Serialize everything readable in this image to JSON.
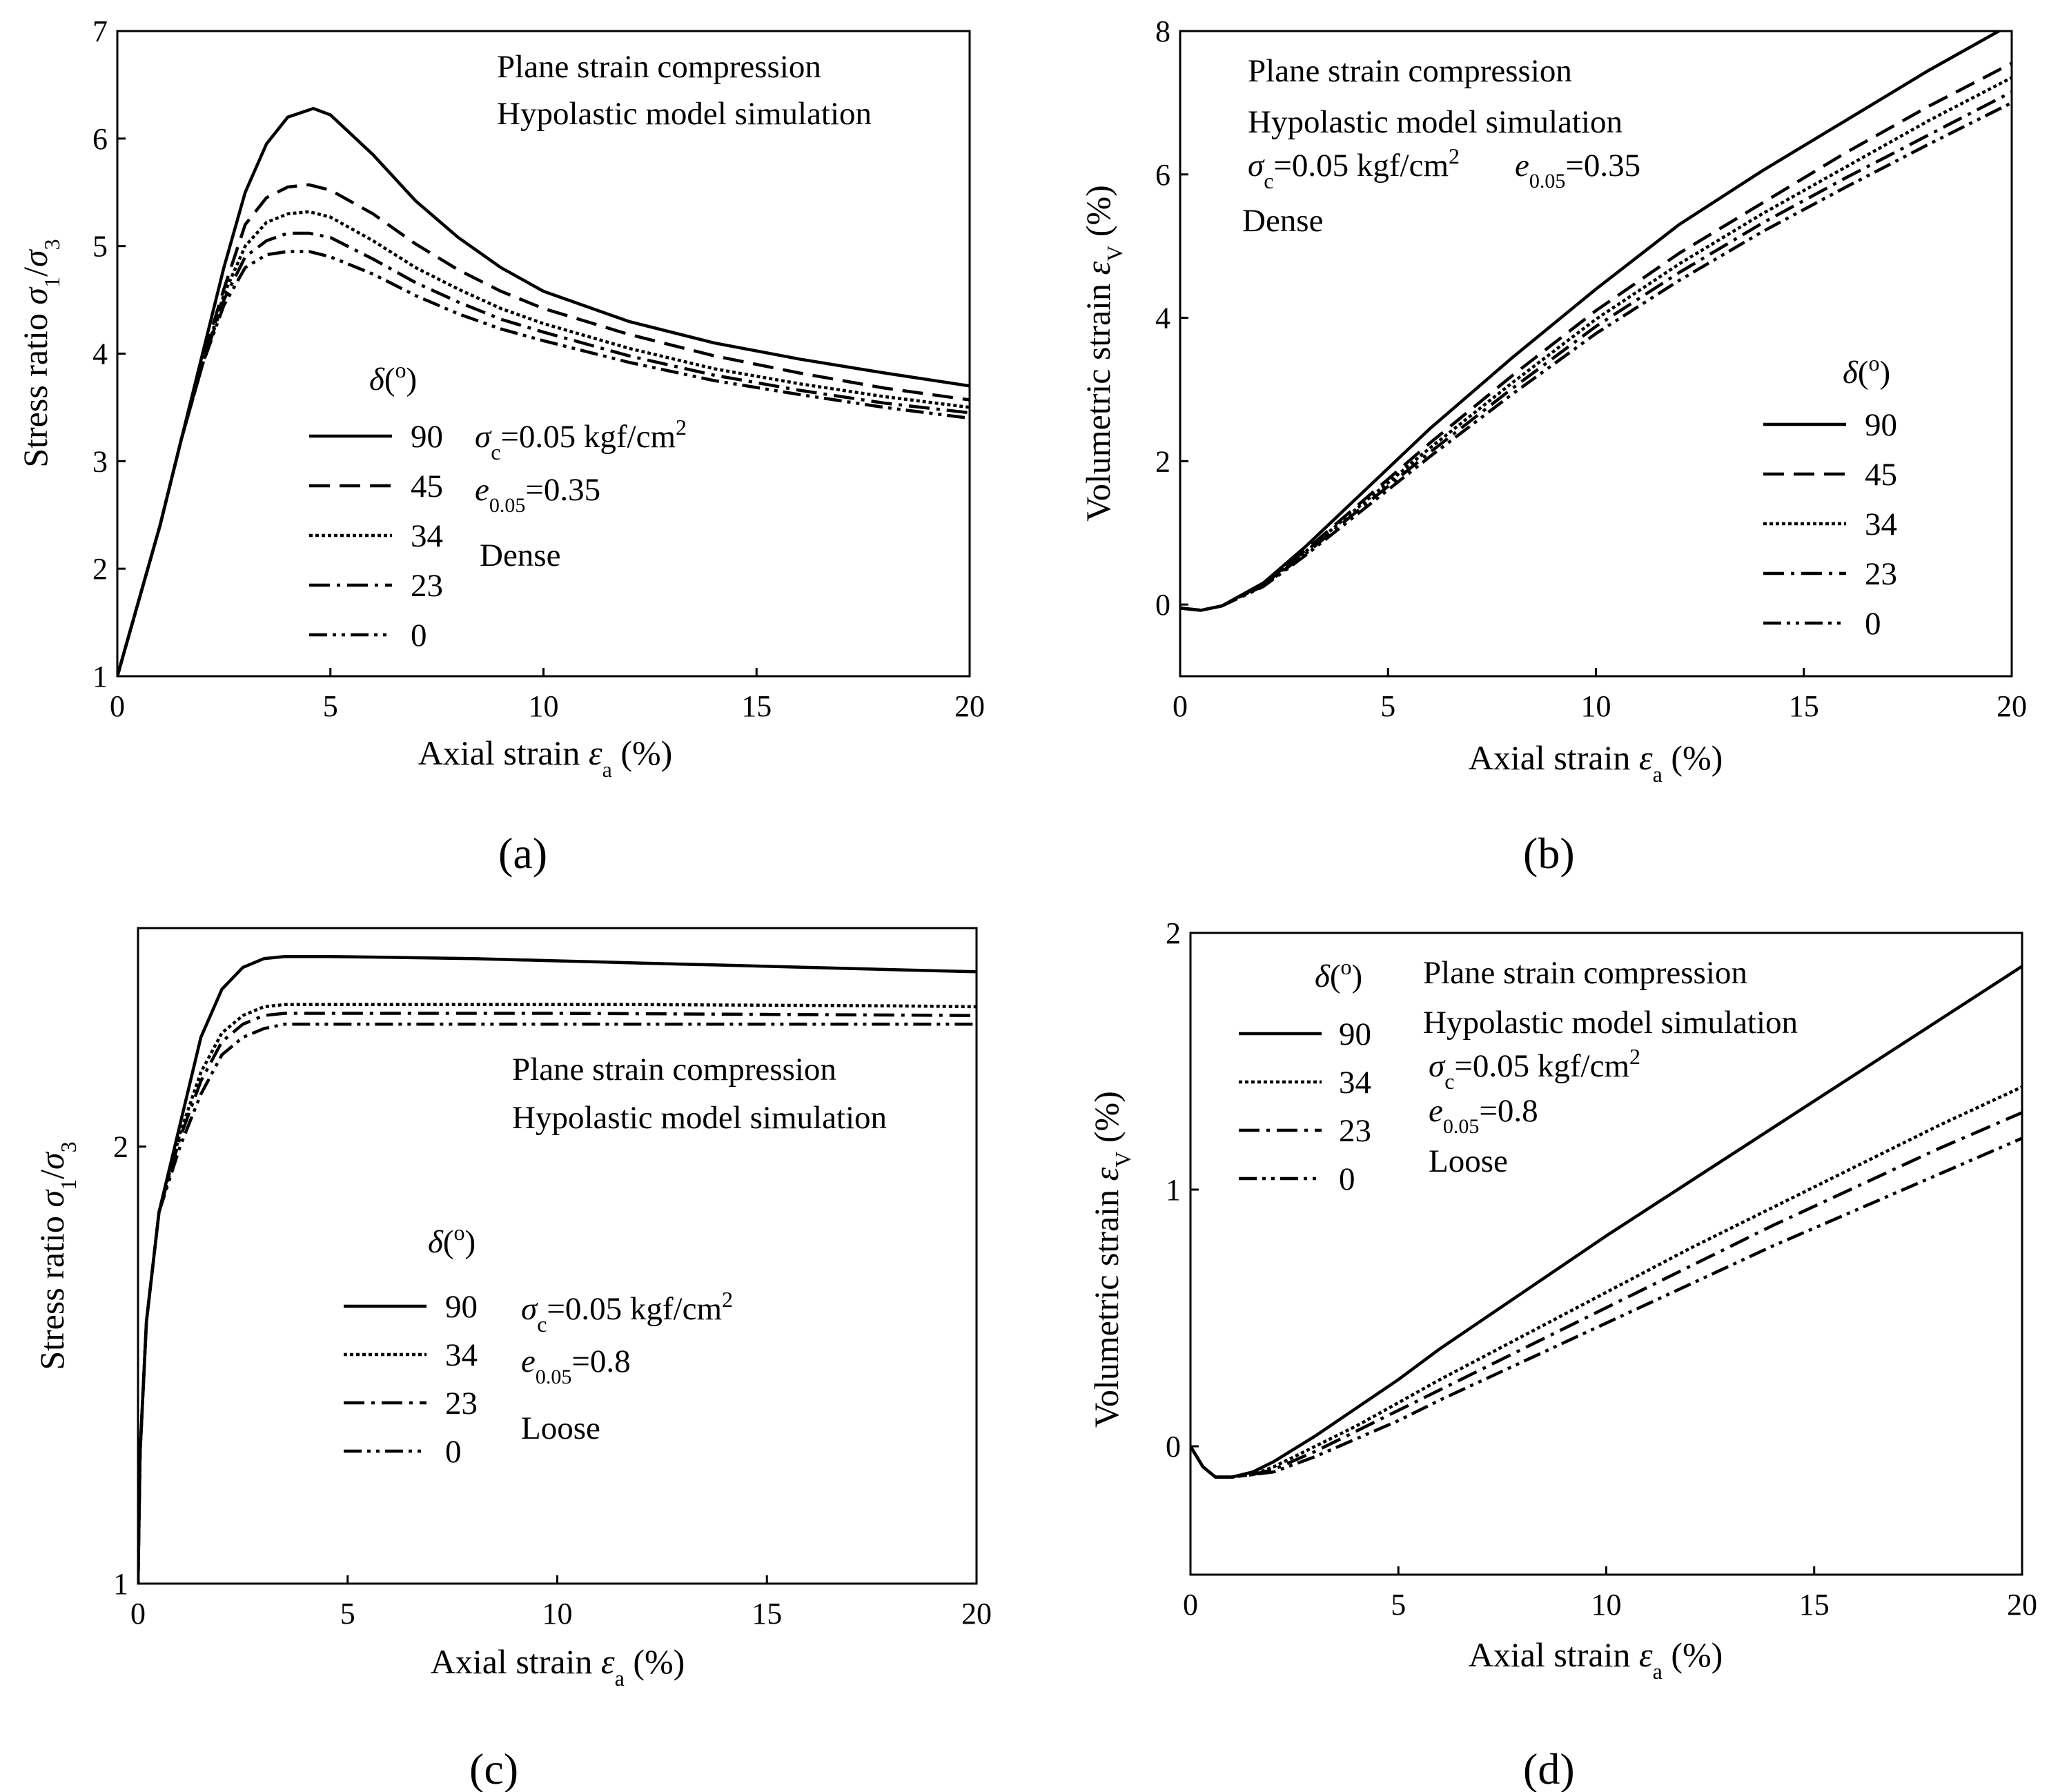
{
  "figure_labels": [
    "(a)",
    "(b)",
    "(c)",
    "(d)"
  ],
  "styles": {
    "90": {
      "dash": "",
      "width": 6
    },
    "45": {
      "dash": "30 14",
      "width": 4.5
    },
    "34": {
      "dash": "5 4",
      "width": 4.5
    },
    "23": {
      "dash": "30 10 5 10",
      "width": 4.5
    },
    "0": {
      "dash": "26 8 5 8 5 8",
      "width": 4.5
    }
  },
  "chart_data": [
    {
      "type": "line",
      "panel": "(a)",
      "title": "",
      "xlabel": "Axial strain εa (%)",
      "ylabel": "Stress ratio σ1/σ3",
      "xlim": [
        0,
        20
      ],
      "ylim": [
        1,
        7
      ],
      "xticks": [
        "0",
        "5",
        "10",
        "15",
        "20"
      ],
      "yticks": [
        "1",
        "2",
        "3",
        "4",
        "5",
        "6",
        "7"
      ],
      "annotations": [
        "Plane strain compression",
        "Hypolastic model simulation",
        "σc=0.05 kgf/cm2",
        "e0.05=0.35",
        "Dense"
      ],
      "legend_title": "δ(o)",
      "legend_labels": [
        "90",
        "45",
        "34",
        "23",
        "0"
      ],
      "series": [
        {
          "name": "90",
          "x": [
            0,
            0.5,
            1,
            1.5,
            2,
            2.5,
            3,
            3.5,
            4,
            4.6,
            5,
            6,
            7,
            8,
            9,
            10,
            12,
            14,
            16,
            18,
            20
          ],
          "y": [
            1.0,
            1.7,
            2.4,
            3.2,
            4.0,
            4.8,
            5.5,
            5.95,
            6.2,
            6.28,
            6.22,
            5.85,
            5.42,
            5.08,
            4.8,
            4.58,
            4.3,
            4.1,
            3.95,
            3.82,
            3.7
          ]
        },
        {
          "name": "45",
          "x": [
            0,
            0.5,
            1,
            1.5,
            2,
            2.5,
            3,
            3.5,
            4,
            4.5,
            5,
            6,
            7,
            8,
            9,
            10,
            12,
            14,
            16,
            18,
            20
          ],
          "y": [
            1.0,
            1.7,
            2.4,
            3.2,
            3.95,
            4.6,
            5.2,
            5.45,
            5.55,
            5.57,
            5.52,
            5.3,
            5.02,
            4.78,
            4.58,
            4.42,
            4.18,
            3.98,
            3.82,
            3.68,
            3.57
          ]
        },
        {
          "name": "34",
          "x": [
            0,
            0.5,
            1,
            1.5,
            2,
            2.5,
            3,
            3.5,
            4,
            4.5,
            5,
            6,
            7,
            8,
            9,
            10,
            12,
            14,
            16,
            18,
            20
          ],
          "y": [
            1.0,
            1.7,
            2.4,
            3.2,
            3.9,
            4.55,
            5.0,
            5.22,
            5.3,
            5.32,
            5.27,
            5.05,
            4.8,
            4.6,
            4.42,
            4.28,
            4.05,
            3.86,
            3.72,
            3.6,
            3.5
          ]
        },
        {
          "name": "23",
          "x": [
            0,
            0.5,
            1,
            1.5,
            2,
            2.5,
            3,
            3.5,
            4,
            4.5,
            5,
            6,
            7,
            8,
            9,
            10,
            12,
            14,
            16,
            18,
            20
          ],
          "y": [
            1.0,
            1.7,
            2.4,
            3.2,
            3.9,
            4.5,
            4.9,
            5.05,
            5.12,
            5.12,
            5.08,
            4.88,
            4.66,
            4.48,
            4.32,
            4.2,
            3.98,
            3.8,
            3.66,
            3.54,
            3.45
          ]
        },
        {
          "name": "0",
          "x": [
            0,
            0.5,
            1,
            1.5,
            2,
            2.5,
            3,
            3.5,
            4,
            4.5,
            5,
            6,
            7,
            8,
            9,
            10,
            12,
            14,
            16,
            18,
            20
          ],
          "y": [
            1.0,
            1.7,
            2.4,
            3.2,
            3.9,
            4.45,
            4.8,
            4.92,
            4.95,
            4.95,
            4.9,
            4.74,
            4.54,
            4.37,
            4.23,
            4.12,
            3.92,
            3.75,
            3.62,
            3.5,
            3.4
          ]
        }
      ]
    },
    {
      "type": "line",
      "panel": "(b)",
      "title": "",
      "xlabel": "Axial strain εa (%)",
      "ylabel": "Volumetric strain εV (%)",
      "xlim": [
        0,
        20
      ],
      "ylim": [
        -1,
        8
      ],
      "xticks": [
        "0",
        "5",
        "10",
        "15",
        "20"
      ],
      "yticks": [
        "0",
        "2",
        "4",
        "6",
        "8"
      ],
      "annotations": [
        "Plane strain compression",
        "Hypolastic model simulation",
        "σc=0.05 kgf/cm2",
        "e0.05=0.35",
        "Dense"
      ],
      "legend_title": "δ(o)",
      "legend_labels": [
        "90",
        "45",
        "34",
        "23",
        "0"
      ],
      "series": [
        {
          "name": "90",
          "x": [
            0,
            0.5,
            1,
            2,
            3,
            4,
            5,
            6,
            8,
            10,
            12,
            14,
            16,
            18,
            20
          ],
          "y": [
            -0.05,
            -0.08,
            -0.02,
            0.3,
            0.8,
            1.35,
            1.9,
            2.45,
            3.45,
            4.4,
            5.3,
            6.05,
            6.75,
            7.45,
            8.1
          ]
        },
        {
          "name": "45",
          "x": [
            0,
            0.5,
            1,
            2,
            3,
            4,
            5,
            6,
            8,
            10,
            12,
            14,
            16,
            18,
            20
          ],
          "y": [
            -0.05,
            -0.08,
            -0.02,
            0.28,
            0.75,
            1.25,
            1.75,
            2.25,
            3.2,
            4.1,
            4.9,
            5.6,
            6.3,
            6.95,
            7.55
          ]
        },
        {
          "name": "34",
          "x": [
            0,
            0.5,
            1,
            2,
            3,
            4,
            5,
            6,
            8,
            10,
            12,
            14,
            16,
            18,
            20
          ],
          "y": [
            -0.05,
            -0.08,
            -0.02,
            0.27,
            0.73,
            1.22,
            1.7,
            2.18,
            3.1,
            3.98,
            4.75,
            5.45,
            6.1,
            6.75,
            7.35
          ]
        },
        {
          "name": "23",
          "x": [
            0,
            0.5,
            1,
            2,
            3,
            4,
            5,
            6,
            8,
            10,
            12,
            14,
            16,
            18,
            20
          ],
          "y": [
            -0.05,
            -0.08,
            -0.02,
            0.26,
            0.7,
            1.18,
            1.65,
            2.12,
            3.02,
            3.88,
            4.63,
            5.32,
            5.95,
            6.55,
            7.15
          ]
        },
        {
          "name": "0",
          "x": [
            0,
            0.5,
            1,
            2,
            3,
            4,
            5,
            6,
            8,
            10,
            12,
            14,
            16,
            18,
            20
          ],
          "y": [
            -0.05,
            -0.08,
            -0.02,
            0.25,
            0.68,
            1.14,
            1.6,
            2.06,
            2.94,
            3.78,
            4.52,
            5.2,
            5.82,
            6.42,
            7.0
          ]
        }
      ]
    },
    {
      "type": "line",
      "panel": "(c)",
      "title": "",
      "xlabel": "Axial strain εa (%)",
      "ylabel": "Stress ratio σ1/σ3",
      "xlim": [
        0,
        20
      ],
      "ylim": [
        1,
        2.5
      ],
      "xticks": [
        "0",
        "5",
        "10",
        "15",
        "20"
      ],
      "yticks": [
        "1",
        "2"
      ],
      "annotations": [
        "Plane strain compression",
        "Hypolastic model simulation",
        "σc=0.05 kgf/cm2",
        "e0.05=0.8",
        "Loose"
      ],
      "legend_title": "δ(o)",
      "legend_labels": [
        "90",
        "34",
        "23",
        "0"
      ],
      "series": [
        {
          "name": "90",
          "x": [
            0,
            0.05,
            0.2,
            0.5,
            1,
            1.5,
            2,
            2.5,
            3,
            3.5,
            4,
            4.5,
            6,
            8,
            10,
            12,
            14,
            16,
            18,
            20
          ],
          "y": [
            1.0,
            1.3,
            1.6,
            1.85,
            2.05,
            2.25,
            2.36,
            2.41,
            2.43,
            2.435,
            2.435,
            2.435,
            2.433,
            2.43,
            2.425,
            2.42,
            2.415,
            2.41,
            2.405,
            2.4
          ]
        },
        {
          "name": "34",
          "x": [
            0,
            0.05,
            0.2,
            0.5,
            1,
            1.5,
            2,
            2.5,
            3,
            3.5,
            4,
            6,
            8,
            10,
            12,
            14,
            16,
            18,
            20
          ],
          "y": [
            1.0,
            1.3,
            1.6,
            1.85,
            2.03,
            2.17,
            2.26,
            2.3,
            2.32,
            2.325,
            2.325,
            2.325,
            2.325,
            2.325,
            2.325,
            2.324,
            2.323,
            2.322,
            2.32
          ]
        },
        {
          "name": "23",
          "x": [
            0,
            0.05,
            0.2,
            0.5,
            1,
            1.5,
            2,
            2.5,
            3,
            3.5,
            4,
            6,
            8,
            10,
            12,
            14,
            16,
            18,
            20
          ],
          "y": [
            1.0,
            1.3,
            1.6,
            1.85,
            2.02,
            2.15,
            2.24,
            2.28,
            2.3,
            2.305,
            2.305,
            2.305,
            2.305,
            2.305,
            2.304,
            2.303,
            2.302,
            2.301,
            2.3
          ]
        },
        {
          "name": "0",
          "x": [
            0,
            0.05,
            0.2,
            0.5,
            1,
            1.5,
            2,
            2.5,
            3,
            3.5,
            4,
            6,
            8,
            10,
            12,
            14,
            16,
            18,
            20
          ],
          "y": [
            1.0,
            1.3,
            1.6,
            1.85,
            2.0,
            2.12,
            2.21,
            2.25,
            2.27,
            2.28,
            2.28,
            2.28,
            2.28,
            2.28,
            2.28,
            2.28,
            2.28,
            2.28,
            2.28
          ]
        }
      ]
    },
    {
      "type": "line",
      "panel": "(d)",
      "title": "",
      "xlabel": "Axial strain εa (%)",
      "ylabel": "Volumetric strain εV (%)",
      "xlim": [
        0,
        20
      ],
      "ylim": [
        -0.5,
        2
      ],
      "xticks": [
        "0",
        "5",
        "10",
        "15",
        "20"
      ],
      "yticks": [
        "0",
        "1",
        "2"
      ],
      "annotations": [
        "Plane strain compression",
        "Hypolastic model simulation",
        "σc=0.05 kgf/cm2",
        "e0.05=0.8",
        "Loose"
      ],
      "legend_title": "δ(o)",
      "legend_labels": [
        "90",
        "34",
        "23",
        "0"
      ],
      "series": [
        {
          "name": "90",
          "x": [
            0,
            0.3,
            0.6,
            1,
            1.5,
            2,
            3,
            4,
            5,
            6,
            8,
            10,
            12,
            14,
            16,
            18,
            20
          ],
          "y": [
            0.0,
            -0.08,
            -0.12,
            -0.12,
            -0.1,
            -0.06,
            0.04,
            0.15,
            0.26,
            0.38,
            0.6,
            0.82,
            1.03,
            1.24,
            1.45,
            1.66,
            1.87
          ]
        },
        {
          "name": "34",
          "x": [
            0,
            0.3,
            0.6,
            1,
            1.5,
            2,
            3,
            4,
            5,
            6,
            8,
            10,
            12,
            14,
            16,
            18,
            20
          ],
          "y": [
            0.0,
            -0.08,
            -0.12,
            -0.12,
            -0.11,
            -0.08,
            0.0,
            0.08,
            0.17,
            0.26,
            0.43,
            0.6,
            0.77,
            0.93,
            1.09,
            1.25,
            1.4
          ]
        },
        {
          "name": "23",
          "x": [
            0,
            0.3,
            0.6,
            1,
            1.5,
            2,
            3,
            4,
            5,
            6,
            8,
            10,
            12,
            14,
            16,
            18,
            20
          ],
          "y": [
            0.0,
            -0.08,
            -0.12,
            -0.12,
            -0.11,
            -0.09,
            -0.02,
            0.06,
            0.14,
            0.22,
            0.38,
            0.54,
            0.7,
            0.86,
            1.01,
            1.16,
            1.3
          ]
        },
        {
          "name": "0",
          "x": [
            0,
            0.3,
            0.6,
            1,
            1.5,
            2,
            3,
            4,
            5,
            6,
            8,
            10,
            12,
            14,
            16,
            18,
            20
          ],
          "y": [
            0.0,
            -0.08,
            -0.12,
            -0.12,
            -0.11,
            -0.1,
            -0.04,
            0.03,
            0.1,
            0.18,
            0.33,
            0.48,
            0.63,
            0.78,
            0.92,
            1.06,
            1.2
          ]
        }
      ]
    }
  ]
}
